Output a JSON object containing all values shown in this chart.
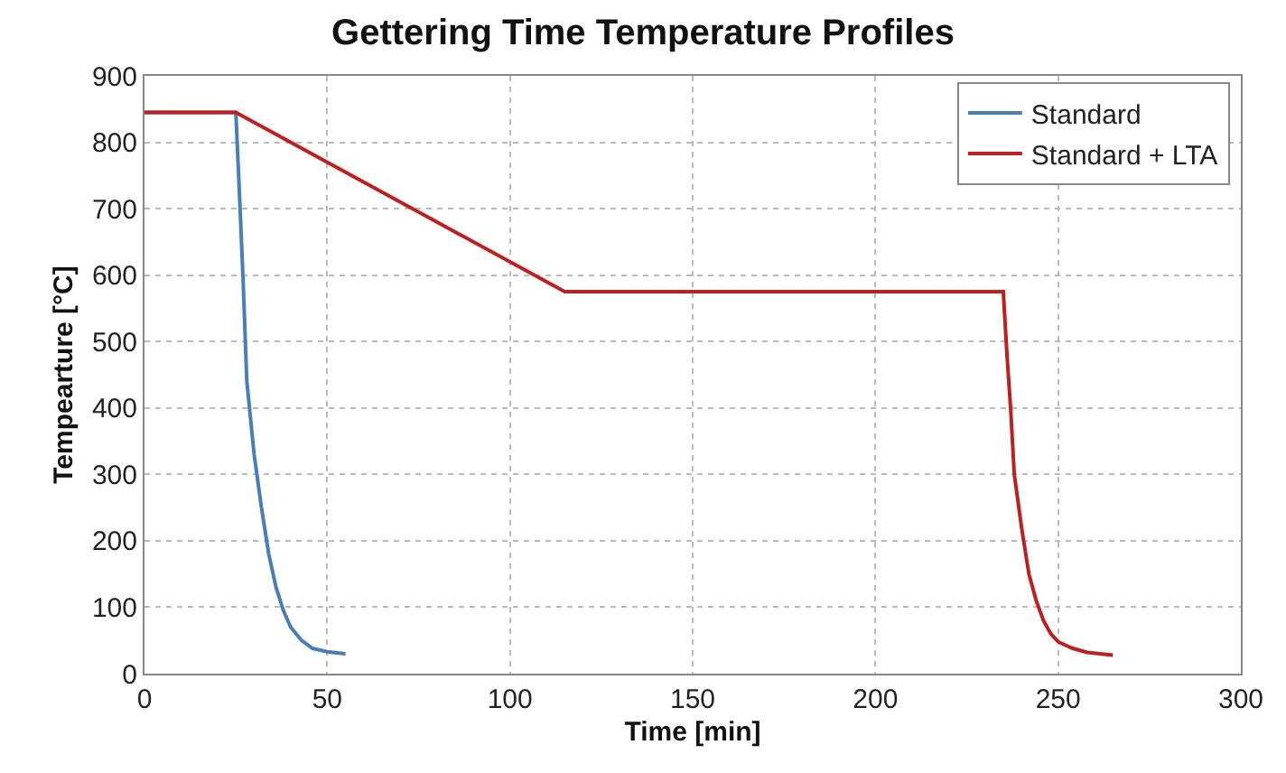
{
  "chart_data": {
    "type": "line",
    "title": "Gettering Time Temperature Profiles",
    "xlabel": "Time [min]",
    "ylabel": "Tempearture [°C]",
    "xlim": [
      0,
      300
    ],
    "xticks": [
      0,
      50,
      100,
      150,
      200,
      250,
      300
    ],
    "ylim": [
      0,
      900
    ],
    "yticks": [
      0,
      100,
      200,
      300,
      400,
      500,
      600,
      700,
      800,
      900
    ],
    "grid": true,
    "legend": "top right",
    "marker": "none",
    "line_style": "solid",
    "series": [
      {
        "name": "Standard",
        "color": "#4a7ebb",
        "x": [
          0,
          25,
          26,
          27,
          28,
          30,
          32,
          34,
          36,
          38,
          40,
          43,
          46,
          50,
          55
        ],
        "values": [
          845,
          845,
          720,
          590,
          440,
          330,
          250,
          180,
          130,
          95,
          70,
          50,
          38,
          33,
          30
        ]
      },
      {
        "name": "Standard + LTA",
        "color": "#be2020",
        "x": [
          0,
          25,
          115,
          235,
          236,
          237,
          238,
          240,
          242,
          244,
          246,
          248,
          250,
          254,
          258,
          265
        ],
        "values": [
          845,
          845,
          575,
          575,
          480,
          400,
          300,
          220,
          150,
          110,
          80,
          60,
          48,
          38,
          32,
          28
        ]
      }
    ]
  }
}
